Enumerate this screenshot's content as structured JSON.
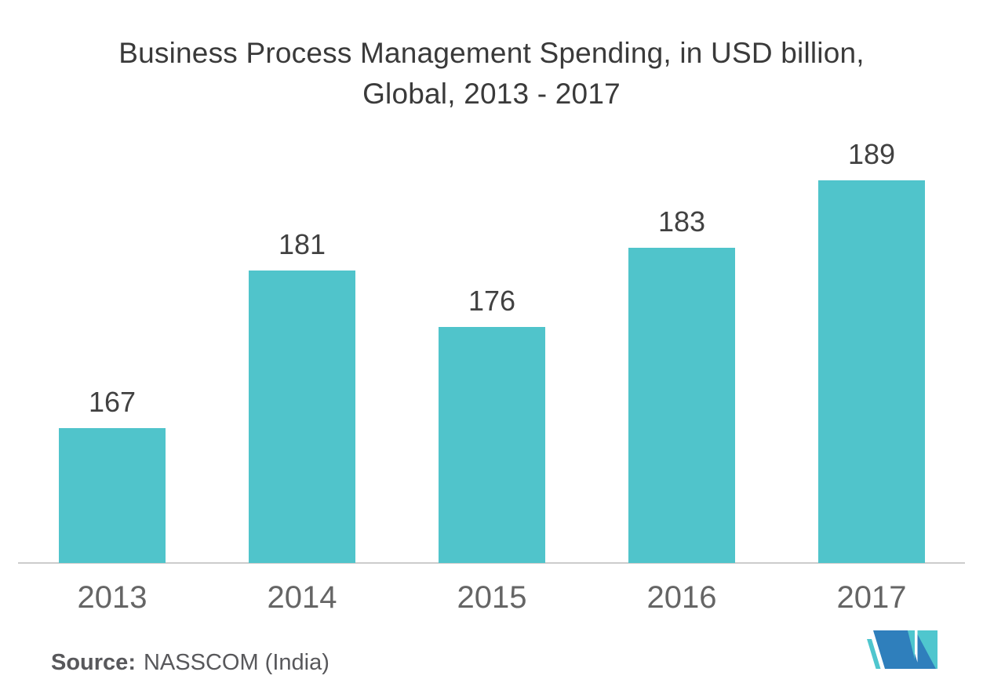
{
  "title": {
    "line1": "Business Process Management Spending, in USD billion,",
    "line2": "Global, 2013 - 2017"
  },
  "source": {
    "label": "Source:",
    "text": "NASSCOM (India)"
  },
  "logo": {
    "teal": "#4FC6CE",
    "blue": "#2F7FBC"
  },
  "colors": {
    "bar": "#50C4CB",
    "title": "#3A3A3A",
    "value_label": "#414141",
    "axis_label": "#656565",
    "axis_line": "#CCCCCC",
    "source": "#58585B",
    "background": "#FFFFFF"
  },
  "chart_data": {
    "type": "bar",
    "title": "Business Process Management Spending, in USD billion, Global, 2013 - 2017",
    "categories": [
      "2013",
      "2014",
      "2015",
      "2016",
      "2017"
    ],
    "values": [
      167,
      181,
      176,
      183,
      189
    ],
    "xlabel": "",
    "ylabel": "",
    "ylim": [
      155,
      195
    ],
    "grid": false,
    "legend": false,
    "value_labels": true,
    "bar_color": "#50C4CB"
  }
}
